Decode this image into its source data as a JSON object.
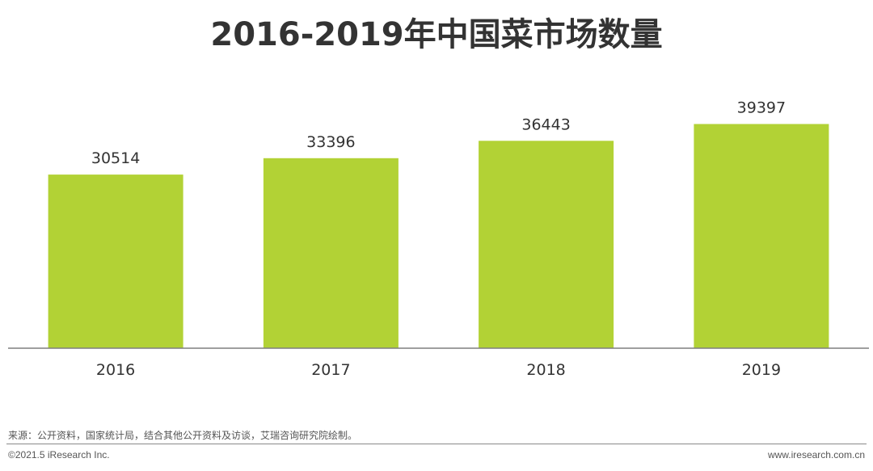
{
  "chart_data": {
    "type": "bar",
    "title": "2016-2019年中国菜市场数量",
    "categories": [
      "2016",
      "2017",
      "2018",
      "2019"
    ],
    "values": [
      30514,
      33396,
      36443,
      39397
    ],
    "value_labels": [
      "30514",
      "33396",
      "36443",
      "39397"
    ],
    "xlabel": "",
    "ylabel": "",
    "ylim": [
      0,
      47000
    ],
    "grid": false,
    "legend": "none",
    "bar_color": "#b2d235",
    "axis_color": "#7f7f7f"
  },
  "footer": {
    "source": "来源：公开资料，国家统计局，结合其他公开资料及访谈，艾瑞咨询研究院绘制。",
    "copyright": "©2021.5 iResearch Inc.",
    "website": "www.iresearch.com.cn"
  }
}
